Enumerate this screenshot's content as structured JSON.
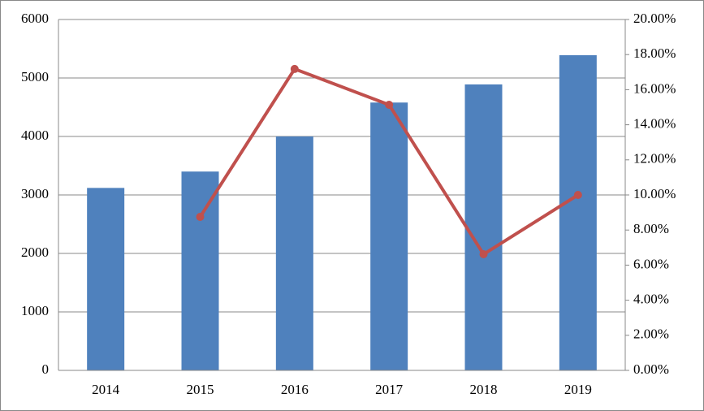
{
  "chart_data": {
    "type": "bar-line",
    "categories": [
      "2014",
      "2015",
      "2016",
      "2017",
      "2018",
      "2019"
    ],
    "series": [
      {
        "type": "bar",
        "color": "#4f81bd",
        "values": [
          3120,
          3400,
          4000,
          4580,
          4890,
          5390
        ]
      },
      {
        "type": "line",
        "axis": "y2",
        "color": "#c0504d",
        "values": [
          null,
          8.75,
          17.18,
          15.14,
          6.62,
          10.0
        ]
      }
    ],
    "ylim": [
      0,
      6000
    ],
    "yticks": [
      0,
      1000,
      2000,
      3000,
      4000,
      5000,
      6000
    ],
    "y2lim": [
      0,
      20
    ],
    "y2ticks": [
      {
        "value": 0,
        "label": "0.00%"
      },
      {
        "value": 2,
        "label": "2.00%"
      },
      {
        "value": 4,
        "label": "4.00%"
      },
      {
        "value": 6,
        "label": "6.00%"
      },
      {
        "value": 8,
        "label": "8.00%"
      },
      {
        "value": 10,
        "label": "10.00%"
      },
      {
        "value": 12,
        "label": "12.00%"
      },
      {
        "value": 14,
        "label": "14.00%"
      },
      {
        "value": 16,
        "label": "16.00%"
      },
      {
        "value": 18,
        "label": "18.00%"
      },
      {
        "value": 20,
        "label": "20.00%"
      }
    ],
    "grid": true
  }
}
